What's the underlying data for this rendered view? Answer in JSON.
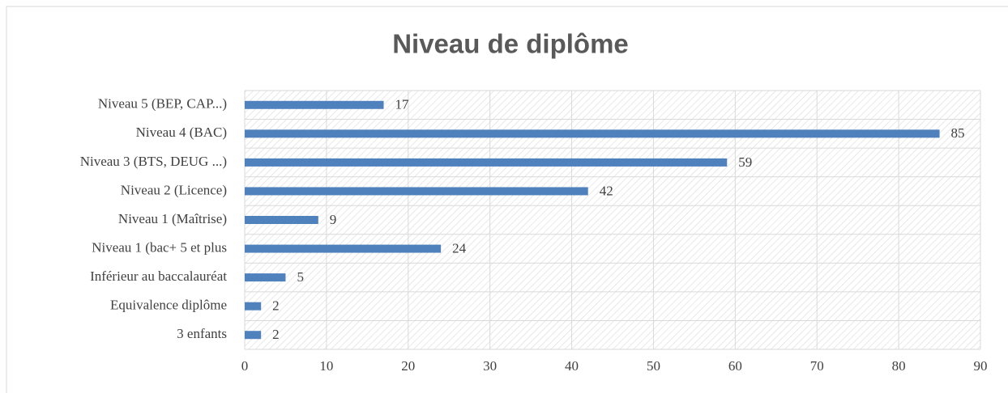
{
  "chart_data": {
    "type": "bar",
    "orientation": "horizontal",
    "title": "Niveau de diplôme",
    "categories": [
      "Niveau 5 (BEP, CAP...)",
      "Niveau 4 (BAC)",
      "Niveau 3 (BTS, DEUG ...)",
      "Niveau 2 (Licence)",
      "Niveau 1 (Maîtrise)",
      "Niveau 1 (bac+ 5 et plus",
      "Inférieur au baccalauréat",
      "Equivalence diplôme",
      "3 enfants"
    ],
    "values": [
      17,
      85,
      59,
      42,
      9,
      24,
      5,
      2,
      2
    ],
    "color": "#4f81bd",
    "xlim": [
      0,
      90
    ],
    "xticks": [
      0,
      10,
      20,
      30,
      40,
      50,
      60,
      70,
      80,
      90
    ],
    "grid": true
  }
}
